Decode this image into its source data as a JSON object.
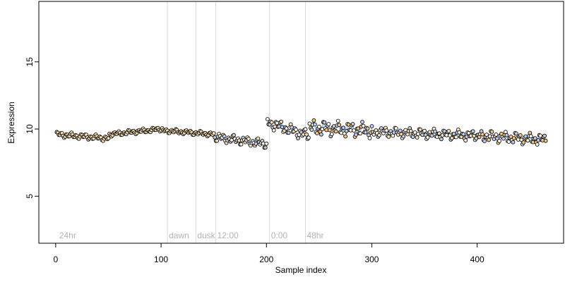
{
  "chart_data": {
    "type": "scatter",
    "xlabel": "Sample index",
    "ylabel": "Expression",
    "xlim": [
      -16,
      482
    ],
    "ylim": [
      1.5,
      19.5
    ],
    "x_ticks": [
      0,
      100,
      200,
      300,
      400
    ],
    "y_ticks": [
      5,
      10,
      15
    ],
    "grid": false,
    "legend": "none",
    "phase_markers": [
      {
        "x": 2,
        "label": "24hr",
        "line": false
      },
      {
        "x": 106,
        "label": "dawn",
        "line": true
      },
      {
        "x": 133,
        "label": "dusk",
        "line": true
      },
      {
        "x": 152,
        "label": "12:00",
        "line": true
      },
      {
        "x": 203,
        "label": "0:00",
        "line": true
      },
      {
        "x": 237,
        "label": "48hr",
        "line": true
      }
    ],
    "colors": {
      "point_edge": "#000000",
      "fill_a": "#fdf5e6",
      "fill_b": "#f5deb3",
      "fill_c": "#f5c27a",
      "fill_d": "#b9cbe8",
      "connector": "#7fa8e0",
      "phase_line": "#d9d9d9",
      "phase_text": "#b3b3b3"
    },
    "segments": [
      {
        "x_start": 1,
        "x_end": 50,
        "y_start": 9.6,
        "y_end": 9.3,
        "wobble": 0.22,
        "fills": [
          "fill_a",
          "fill_b"
        ]
      },
      {
        "x_start": 51,
        "x_end": 100,
        "y_start": 9.6,
        "y_end": 10.0,
        "wobble": 0.18,
        "fills": [
          "fill_a",
          "fill_b"
        ]
      },
      {
        "x_start": 101,
        "x_end": 150,
        "y_start": 9.9,
        "y_end": 9.6,
        "wobble": 0.18,
        "fills": [
          "fill_a",
          "fill_b"
        ]
      },
      {
        "x_start": 151,
        "x_end": 200,
        "y_start": 9.4,
        "y_end": 8.9,
        "wobble": 0.35,
        "fills": [
          "fill_a",
          "fill_d",
          "fill_b"
        ]
      },
      {
        "x_start": 201,
        "x_end": 240,
        "y_start": 10.5,
        "y_end": 9.5,
        "wobble": 0.45,
        "fills": [
          "fill_a",
          "fill_d",
          "fill_b"
        ]
      },
      {
        "x_start": 241,
        "x_end": 300,
        "y_start": 10.1,
        "y_end": 9.9,
        "wobble": 0.6,
        "fills": [
          "fill_c",
          "fill_a",
          "fill_d"
        ]
      },
      {
        "x_start": 301,
        "x_end": 400,
        "y_start": 9.8,
        "y_end": 9.5,
        "wobble": 0.4,
        "fills": [
          "fill_a",
          "fill_b",
          "fill_d"
        ]
      },
      {
        "x_start": 401,
        "x_end": 465,
        "y_start": 9.5,
        "y_end": 9.2,
        "wobble": 0.45,
        "fills": [
          "fill_a",
          "fill_c",
          "fill_d"
        ]
      }
    ]
  }
}
